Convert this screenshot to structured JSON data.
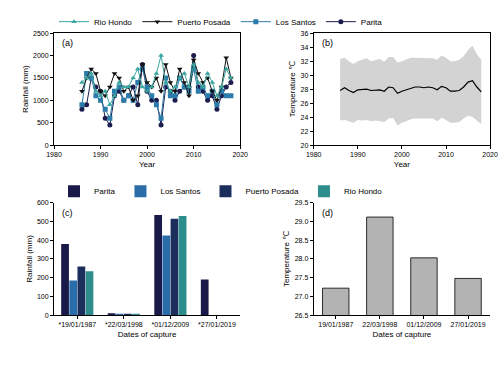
{
  "chart_data": [
    {
      "type": "line",
      "title": "(a)",
      "x_label": "Year",
      "y_label": "Rainfall (mm)",
      "x": [
        1986,
        1987,
        1988,
        1989,
        1990,
        1991,
        1992,
        1993,
        1994,
        1995,
        1996,
        1997,
        1998,
        1999,
        2000,
        2001,
        2002,
        2003,
        2004,
        2005,
        2006,
        2007,
        2008,
        2009,
        2010,
        2011,
        2012,
        2013,
        2014,
        2015,
        2016,
        2017,
        2018
      ],
      "series": [
        {
          "name": "Parita",
          "color": "#1c1c4e",
          "marker": "circle",
          "values": [
            800,
            900,
            1500,
            1300,
            1200,
            600,
            450,
            1100,
            1200,
            1000,
            1100,
            1300,
            900,
            1800,
            1200,
            1000,
            1000,
            450,
            1300,
            1200,
            1000,
            1200,
            1300,
            1300,
            2000,
            1300,
            1200,
            1000,
            1100,
            800,
            1100,
            1300,
            1400
          ]
        },
        {
          "name": "Los Santos",
          "color": "#2b7bab",
          "marker": "square",
          "values": [
            900,
            1600,
            1500,
            1100,
            1000,
            800,
            600,
            1200,
            1300,
            1000,
            1100,
            1000,
            1400,
            1700,
            1300,
            1100,
            900,
            600,
            1500,
            1100,
            1100,
            1500,
            1300,
            1200,
            1700,
            1200,
            1300,
            1100,
            1200,
            900,
            1200,
            1100,
            1100
          ]
        },
        {
          "name": "Puerto Posada",
          "color": "#111111",
          "marker": "triangle-down",
          "values": [
            1200,
            1500,
            1700,
            1600,
            1200,
            1100,
            1300,
            1600,
            1500,
            1200,
            1300,
            1000,
            1100,
            1800,
            1400,
            1300,
            1500,
            1200,
            1800,
            1400,
            1200,
            1700,
            1400,
            1100,
            1900,
            1600,
            1400,
            1500,
            1200,
            1000,
            1300,
            1950,
            1500
          ]
        },
        {
          "name": "Rio Hondo",
          "color": "#3aa6a0",
          "marker": "triangle-up",
          "values": [
            1400,
            1500,
            1600,
            1200,
            1100,
            1200,
            900,
            1100,
            1400,
            1300,
            1300,
            1500,
            1700,
            1300,
            1200,
            1300,
            1600,
            2000,
            1400,
            1200,
            1300,
            1500,
            1600,
            1300,
            1800,
            1400,
            1300,
            1600,
            1400,
            1100,
            1300,
            1700,
            1500
          ]
        }
      ],
      "xlim": [
        1980,
        2020
      ],
      "xticks": [
        1980,
        1990,
        2000,
        2010,
        2020
      ],
      "ylim": [
        0,
        2500
      ],
      "yticks": [
        0,
        500,
        1000,
        1500,
        2000,
        2500
      ],
      "legend": "top"
    },
    {
      "type": "line",
      "title": "(b)",
      "x_label": "Year",
      "y_label": "Temperature ℃",
      "x": [
        1986,
        1987,
        1988,
        1989,
        1990,
        1991,
        1992,
        1993,
        1994,
        1995,
        1996,
        1997,
        1998,
        1999,
        2000,
        2001,
        2002,
        2003,
        2004,
        2005,
        2006,
        2007,
        2008,
        2009,
        2010,
        2011,
        2012,
        2013,
        2014,
        2015,
        2016,
        2017,
        2018
      ],
      "series": [
        {
          "color": "#000000",
          "values": [
            27.8,
            28.2,
            27.8,
            27.5,
            27.9,
            28.0,
            28.0,
            27.8,
            27.9,
            27.9,
            27.7,
            28.3,
            28.2,
            27.4,
            27.7,
            27.9,
            28.2,
            28.3,
            28.3,
            28.2,
            28.3,
            28.2,
            27.9,
            28.4,
            28.2,
            27.7,
            27.7,
            27.8,
            28.3,
            29.0,
            29.2,
            28.3,
            27.6
          ]
        }
      ],
      "band": {
        "color": "#d3d3d3",
        "lower": [
          23.5,
          23.6,
          23.4,
          23.2,
          23.6,
          23.5,
          23.6,
          23.4,
          23.5,
          23.4,
          23.3,
          23.8,
          23.9,
          22.8,
          23.2,
          23.4,
          23.7,
          23.8,
          23.8,
          23.7,
          23.8,
          23.8,
          23.4,
          23.9,
          23.6,
          23.2,
          23.2,
          23.3,
          23.8,
          24.2,
          24.0,
          23.5,
          23.0
        ],
        "upper": [
          32.3,
          32.5,
          32.0,
          31.6,
          32.0,
          32.2,
          32.4,
          32.0,
          32.2,
          32.3,
          31.9,
          32.6,
          32.6,
          31.8,
          32.0,
          32.2,
          32.5,
          32.5,
          32.5,
          32.4,
          32.5,
          32.4,
          32.2,
          32.8,
          32.5,
          32.0,
          32.0,
          32.2,
          32.7,
          33.6,
          34.2,
          33.0,
          32.2
        ]
      },
      "xlim": [
        1980,
        2020
      ],
      "xticks": [
        1980,
        1990,
        2000,
        2010,
        2020
      ],
      "ylim": [
        20,
        36
      ],
      "yticks": [
        20,
        22,
        24,
        26,
        28,
        30,
        32,
        34,
        36
      ]
    },
    {
      "type": "bar",
      "title": "(c)",
      "x_label": "Dates of capture",
      "y_label": "Rainfall (mm)",
      "categories": [
        "*19/01/1987",
        "*22/03/1998",
        "*01/12/2009",
        "*27/01/2019"
      ],
      "series": [
        {
          "name": "Parita",
          "color": "#1a1a4a",
          "values": [
            380,
            10,
            535,
            190
          ]
        },
        {
          "name": "Los Santos",
          "color": "#2a6da8",
          "values": [
            185,
            5,
            425,
            0
          ]
        },
        {
          "name": "Puerto Posada",
          "color": "#1c2e5c",
          "values": [
            260,
            3,
            515,
            0
          ]
        },
        {
          "name": "Rio Hondo",
          "color": "#2d8c8c",
          "values": [
            235,
            3,
            530,
            0
          ]
        }
      ],
      "ylim": [
        0,
        600
      ],
      "yticks": [
        0,
        100,
        200,
        300,
        400,
        500,
        600
      ],
      "legend": "top"
    },
    {
      "type": "bar",
      "title": "(d)",
      "x_label": "Dates of capture",
      "y_label": "Temperature ℃",
      "categories": [
        "19/01/1987",
        "22/03/1998",
        "01/12/2009",
        "27/01/2019"
      ],
      "values": [
        27.22,
        29.12,
        28.03,
        27.48
      ],
      "color": "#b3b3b3",
      "ylim": [
        26.5,
        29.5
      ],
      "yticks": [
        26.5,
        {
          "value": 27,
          "label": "27.0"
        },
        27.5,
        {
          "value": 28,
          "label": "28.0"
        },
        28.5,
        {
          "value": 29,
          "label": "29.0"
        },
        29.5
      ]
    }
  ]
}
